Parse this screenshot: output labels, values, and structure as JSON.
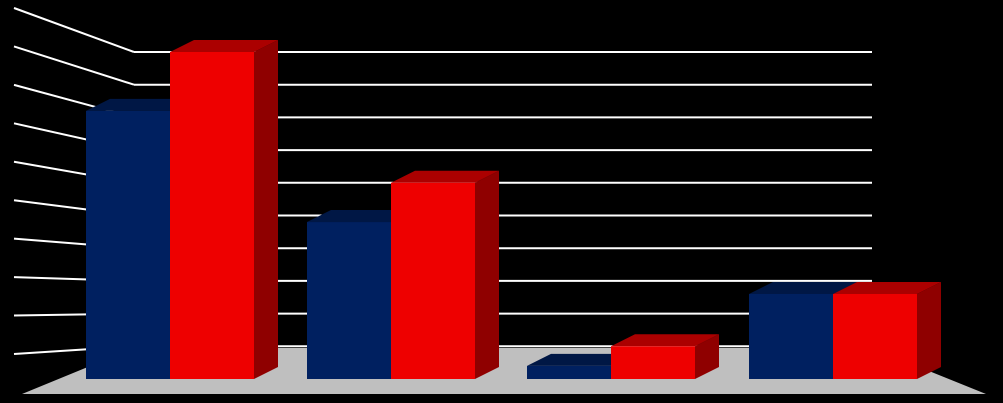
{
  "chart_data": {
    "type": "bar",
    "style": "3d-clustered-column",
    "categories": [
      "",
      "",
      "",
      ""
    ],
    "series": [
      {
        "color": "#002060",
        "values": [
          8.2,
          4.8,
          0.4,
          2.6
        ]
      },
      {
        "color": "#ee0000",
        "values": [
          10.0,
          6.0,
          1.0,
          2.6
        ]
      }
    ],
    "ylim": [
      0,
      10
    ],
    "grid": true,
    "tick_labels_visible": false,
    "legend": "none",
    "colors": {
      "background": "#000000",
      "gridline": "#ffffff",
      "floor": "#bfbfbf"
    }
  }
}
